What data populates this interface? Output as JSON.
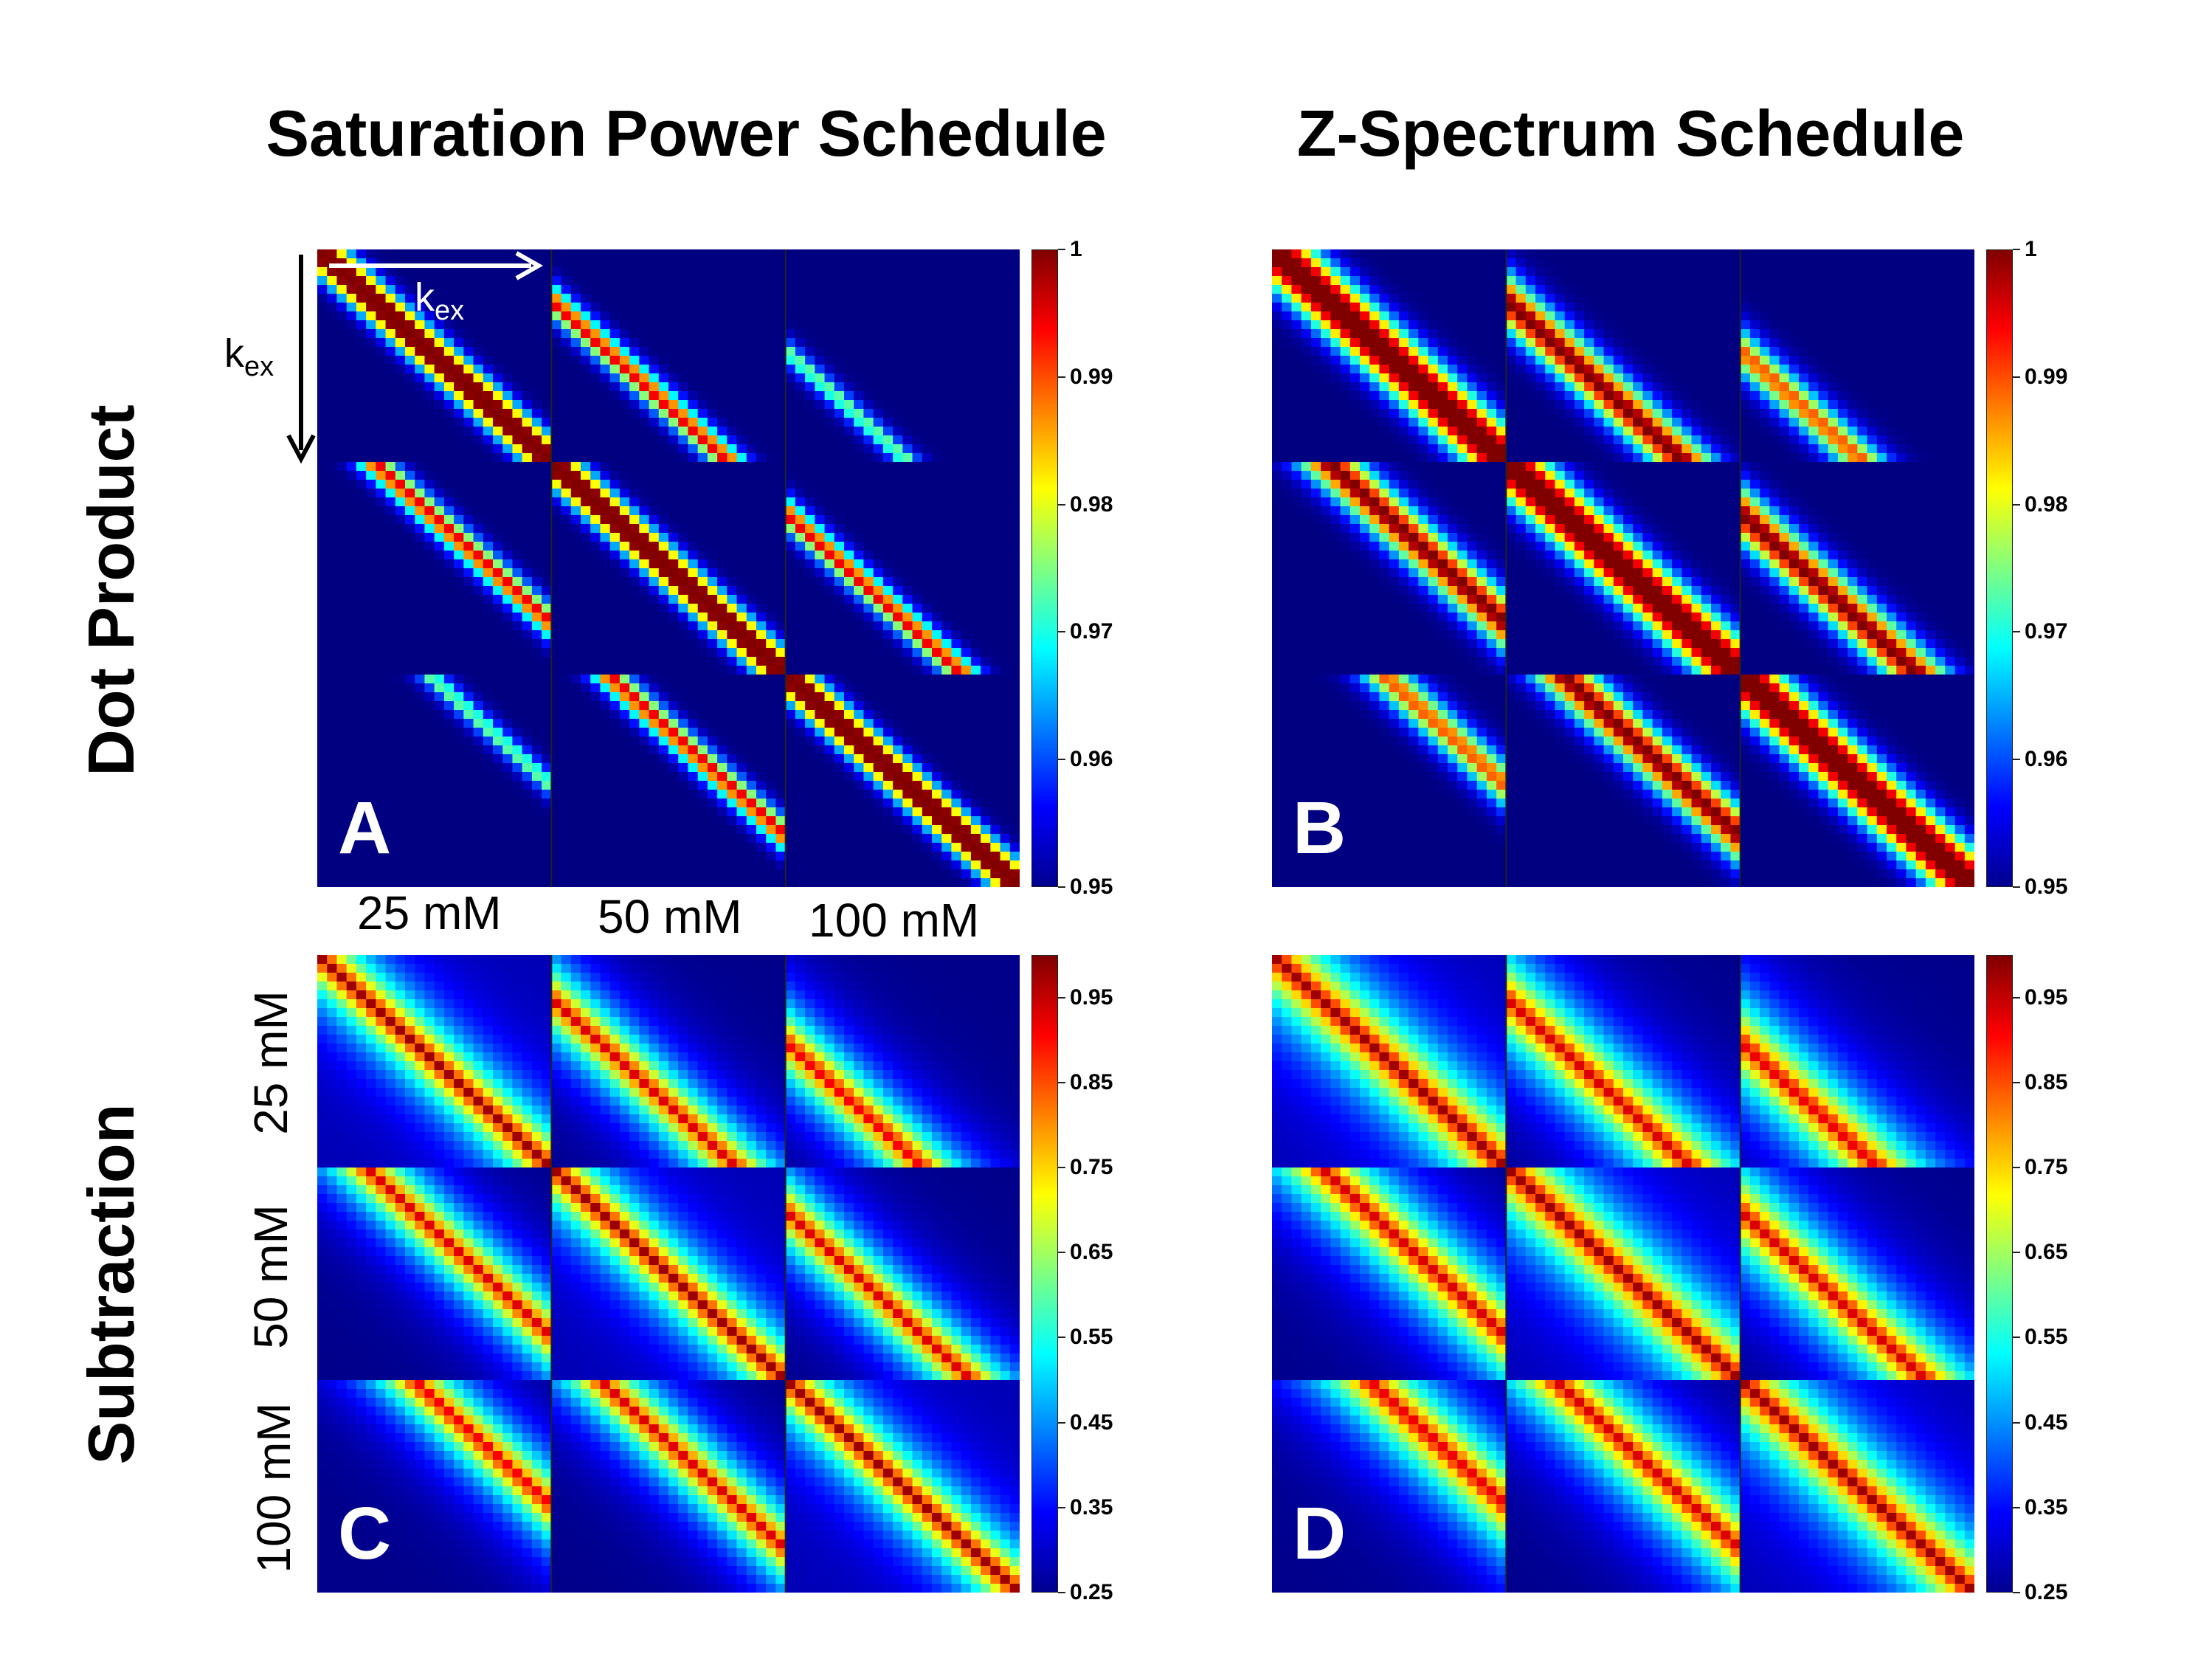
{
  "column_titles": {
    "left": "Saturation Power Schedule",
    "right": "Z-Spectrum Schedule"
  },
  "row_titles": {
    "top": "Dot Product",
    "bottom": "Subtraction"
  },
  "concentrations": [
    "25 mM",
    "50 mM",
    "100 mM"
  ],
  "axis_annotation": {
    "symbol": "k",
    "subscript": "ex"
  },
  "colors": {
    "arrow_horizontal": "#ffffff",
    "arrow_vertical": "#000000",
    "panel_letter": "#ffffff"
  },
  "chart_data": [
    {
      "type": "heatmap",
      "panel": "A",
      "schedule": "Saturation Power Schedule",
      "metric": "Dot Product",
      "colorbar": {
        "min": 0.95,
        "max": 1,
        "ticks": [
          "0.95",
          "0.96",
          "0.97",
          "0.98",
          "0.99",
          "1"
        ]
      }
    },
    {
      "type": "heatmap",
      "panel": "B",
      "schedule": "Z-Spectrum Schedule",
      "metric": "Dot Product",
      "colorbar": {
        "min": 0.95,
        "max": 1,
        "ticks": [
          "0.95",
          "0.96",
          "0.97",
          "0.98",
          "0.99",
          "1"
        ]
      }
    },
    {
      "type": "heatmap",
      "panel": "C",
      "schedule": "Saturation Power Schedule",
      "metric": "Subtraction",
      "colorbar": {
        "min": 0.25,
        "max": 1,
        "ticks": [
          "0.25",
          "0.35",
          "0.45",
          "0.55",
          "0.65",
          "0.75",
          "0.85",
          "0.95"
        ]
      }
    },
    {
      "type": "heatmap",
      "panel": "D",
      "schedule": "Z-Spectrum Schedule",
      "metric": "Subtraction",
      "colorbar": {
        "min": 0.25,
        "max": 1,
        "ticks": [
          "0.25",
          "0.35",
          "0.45",
          "0.55",
          "0.65",
          "0.75",
          "0.85",
          "0.95"
        ]
      }
    }
  ]
}
